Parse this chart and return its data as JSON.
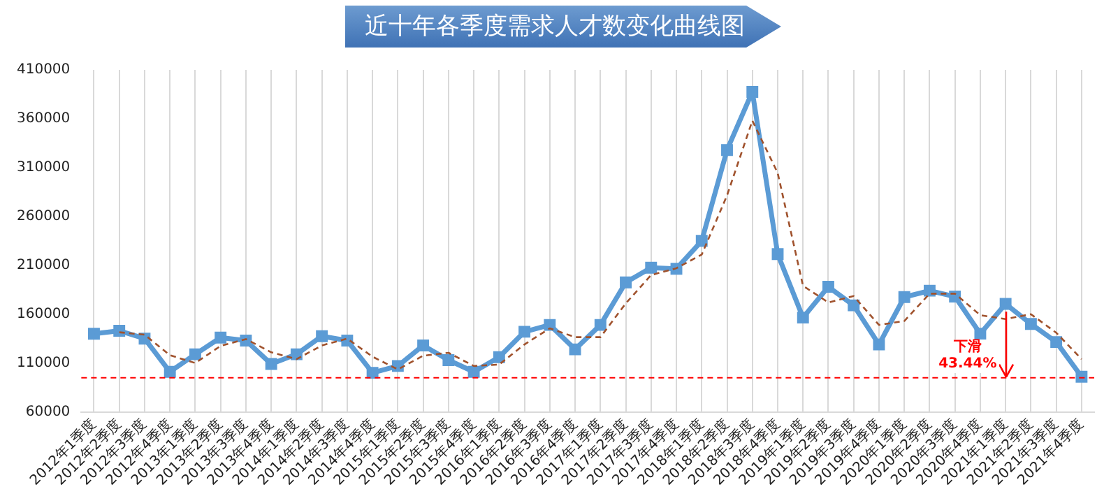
{
  "chart_data": {
    "type": "line",
    "title": "近十年各季度需求人才数变化曲线图",
    "categories": [
      "2012年1季度",
      "2012年2季度",
      "2012年3季度",
      "2012年4季度",
      "2013年1季度",
      "2013年2季度",
      "2013年3季度",
      "2013年4季度",
      "2014年1季度",
      "2014年2季度",
      "2014年3季度",
      "2014年4季度",
      "2015年1季度",
      "2015年2季度",
      "2015年3季度",
      "2015年4季度",
      "2016年1季度",
      "2016年2季度",
      "2016年3季度",
      "2016年4季度",
      "2017年1季度",
      "2017年2季度",
      "2017年3季度",
      "2017年4季度",
      "2018年1季度",
      "2018年2季度",
      "2018年3季度",
      "2018年4季度",
      "2019年1季度",
      "2019年2季度",
      "2019年3季度",
      "2019年4季度",
      "2020年1季度",
      "2020年2季度",
      "2020年3季度",
      "2020年4季度",
      "2021年1季度",
      "2021年2季度",
      "2021年3季度",
      "2021年4季度"
    ],
    "series": [
      {
        "color": "#5b9bd5",
        "marker": "square",
        "line_style": "solid",
        "values": [
          140000,
          143000,
          135000,
          101000,
          119000,
          136000,
          133000,
          109000,
          119000,
          137500,
          133000,
          100000,
          107000,
          128000,
          113000,
          101000,
          116000,
          142000,
          149000,
          124000,
          149000,
          192500,
          207500,
          206500,
          235000,
          328000,
          387500,
          221500,
          156500,
          188000,
          169000,
          129000,
          177500,
          184000,
          178000,
          140000,
          170500,
          150000,
          131500,
          96000
        ]
      },
      {
        "type": "line",
        "color": "#a0522d",
        "marker": "none",
        "line_style": "dashed",
        "values": [
          null,
          141500,
          139000,
          118000,
          110000,
          127500,
          134500,
          121000,
          114000,
          128000,
          135000,
          116500,
          103500,
          117500,
          120500,
          107000,
          108500,
          129000,
          145500,
          136500,
          136500,
          171000,
          200000,
          207000,
          221000,
          281500,
          358000,
          304500,
          189000,
          172000,
          178500,
          149000,
          153000,
          181000,
          181000,
          159000,
          155000,
          160000,
          141000,
          114000
        ]
      }
    ],
    "ylim": [
      60000,
      410000
    ],
    "yticks": [
      60000,
      110000,
      160000,
      210000,
      260000,
      310000,
      360000,
      410000
    ],
    "grid": "x",
    "legend": false,
    "ref_lines": [
      {
        "axis": "y",
        "value": 95000,
        "color": "#ff0000",
        "line_style": "dashed"
      }
    ],
    "annotations": [
      {
        "text": "下滑 43.44%",
        "x": "2021年1季度",
        "y": 170500
      }
    ]
  }
}
